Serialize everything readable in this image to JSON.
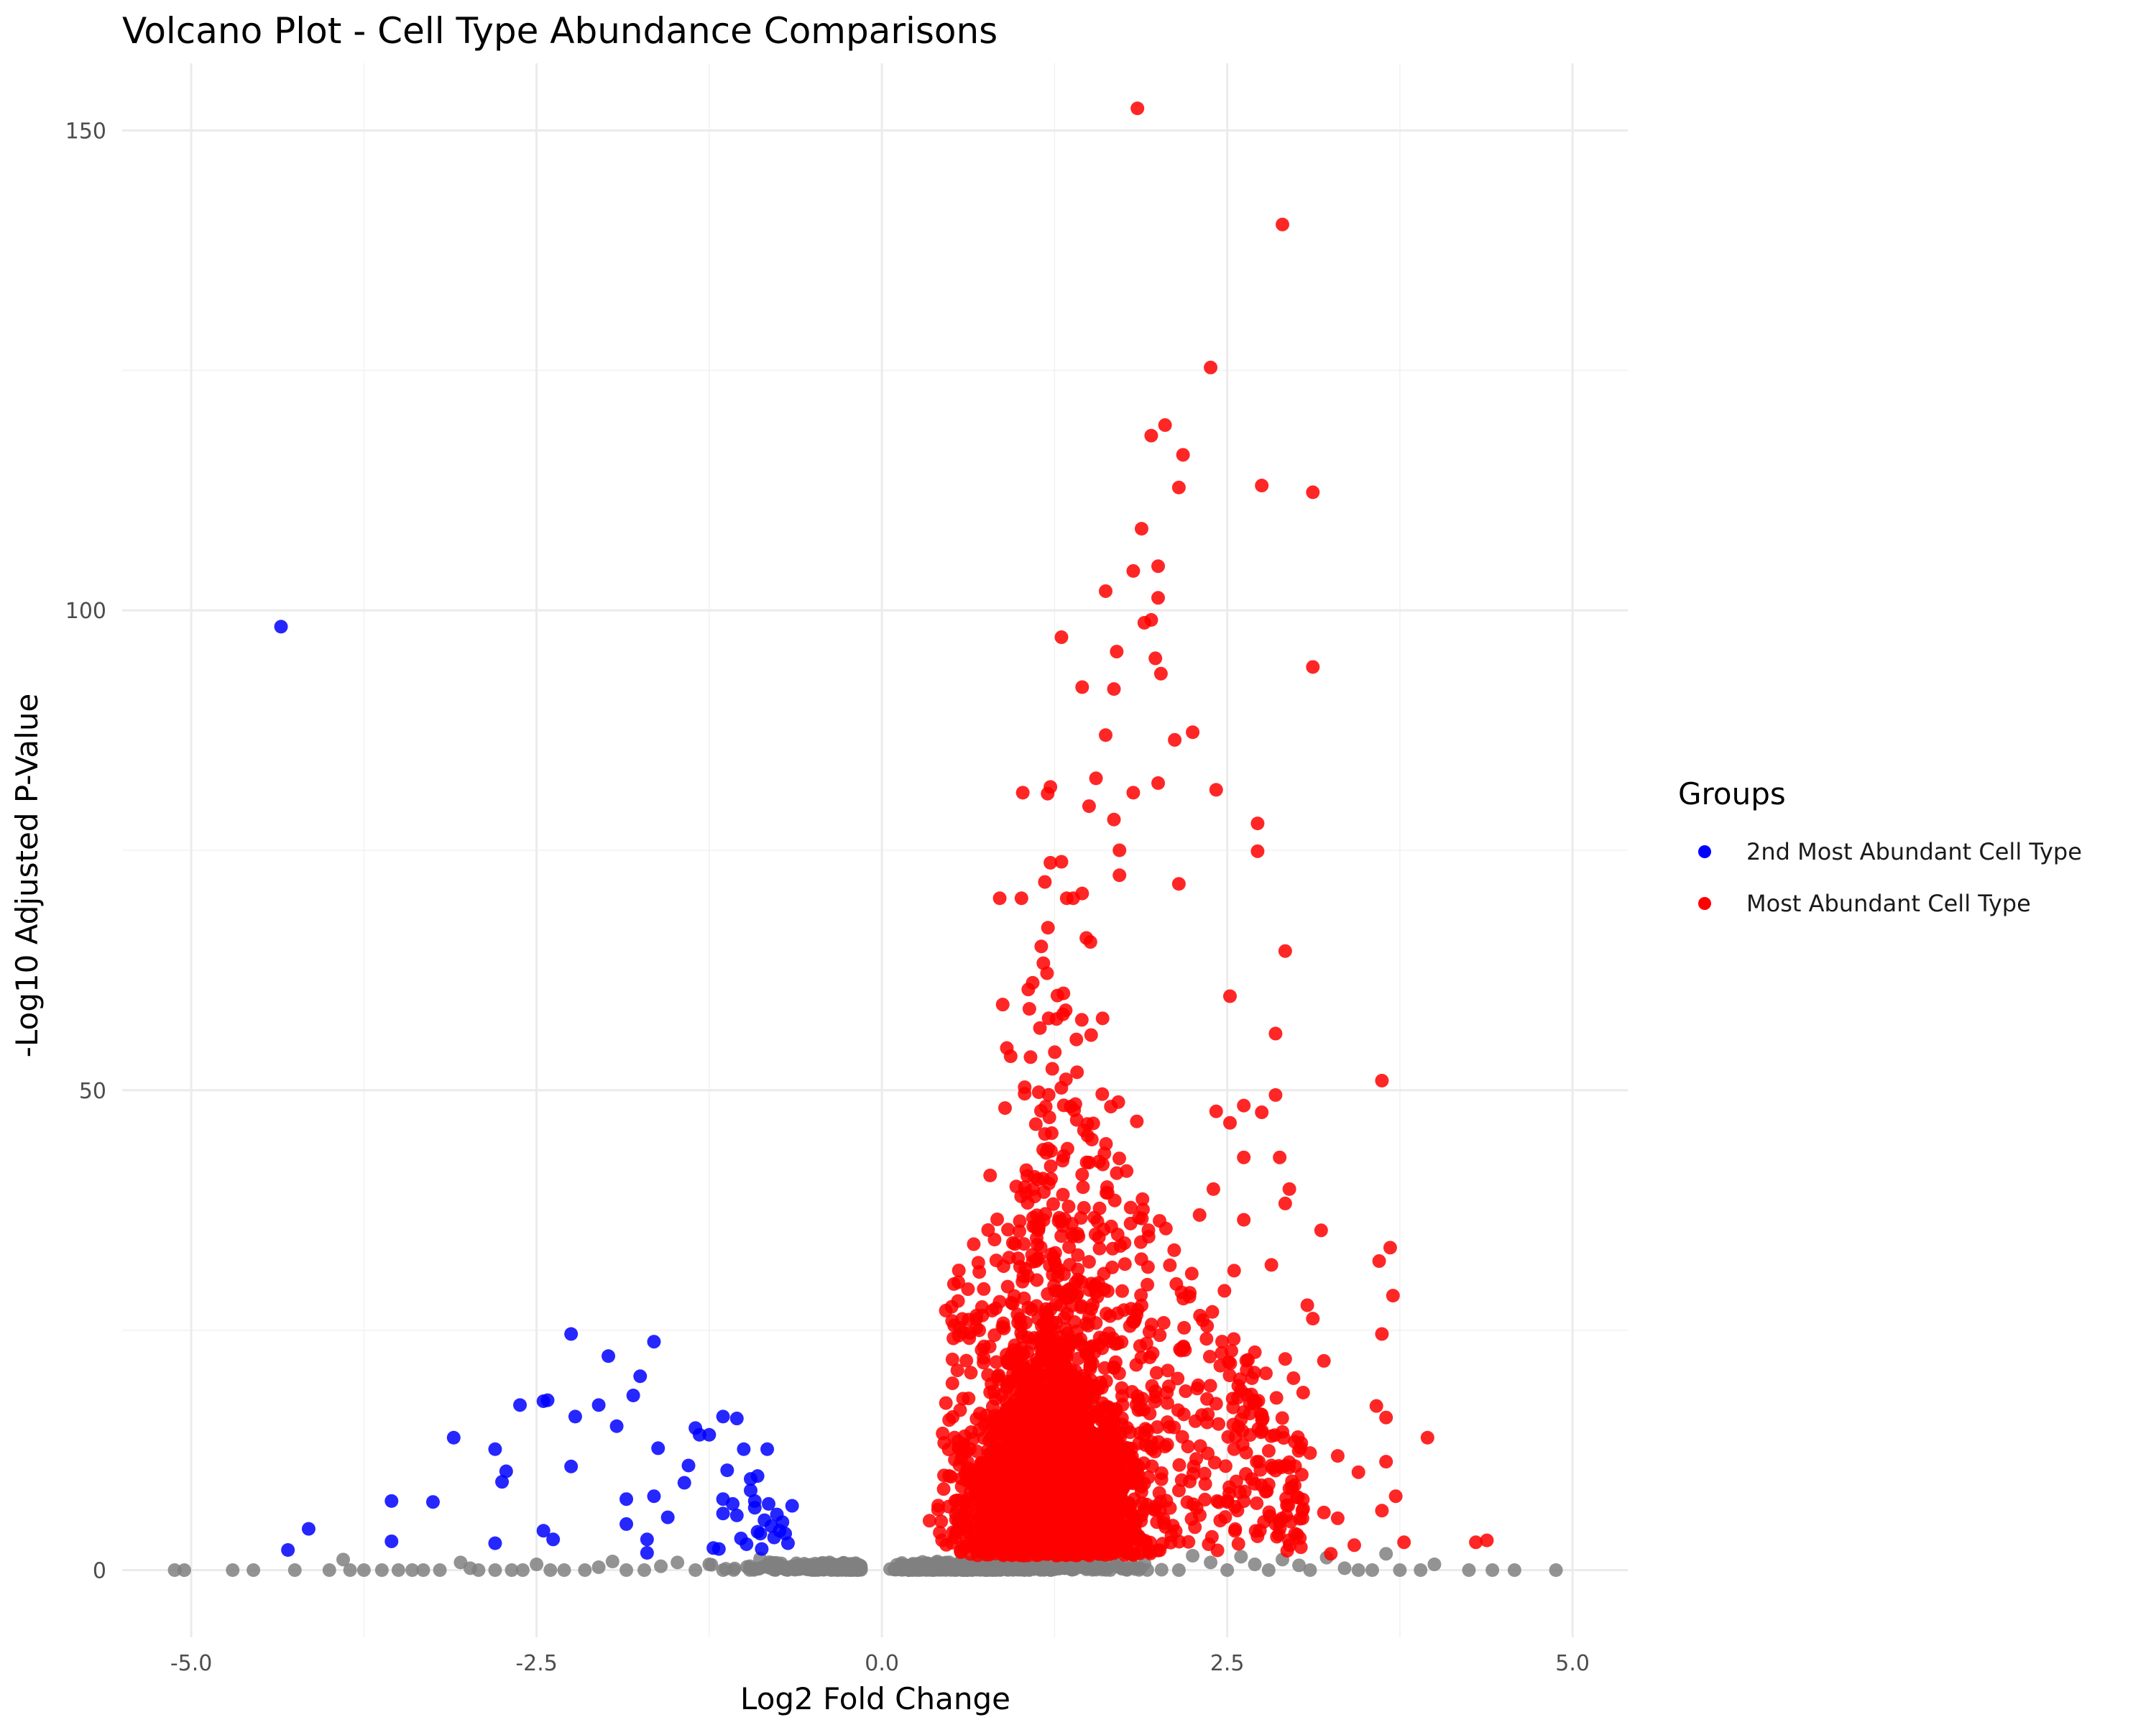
{
  "chart_data": {
    "type": "scatter",
    "title": "Volcano Plot - Cell Type Abundance Comparisons",
    "xlabel": "Log2 Fold Change",
    "ylabel": "-Log10 Adjusted P-Value",
    "xlim": [
      -5.5,
      5.4
    ],
    "ylim": [
      -7,
      157
    ],
    "xticks": [
      -5.0,
      -2.5,
      0.0,
      2.5,
      5.0
    ],
    "xtick_labels": [
      "-5.0",
      "-2.5",
      "0.0",
      "2.5",
      "5.0"
    ],
    "yticks": [
      0,
      50,
      100,
      150
    ],
    "ytick_labels": [
      "0",
      "50",
      "100",
      "150"
    ],
    "grid": true,
    "legend": {
      "title": "Groups",
      "position": "right",
      "entries": [
        {
          "label": "2nd Most Abundant Cell Type",
          "color": "#0000ff"
        },
        {
          "label": "Most Abundant Cell Type",
          "color": "#ff0000"
        }
      ]
    },
    "series": [
      {
        "name": "2nd Most Abundant Cell Type",
        "color": "#0000ff",
        "points": [
          [
            -4.35,
            98.3
          ],
          [
            -4.3,
            2.1
          ],
          [
            -4.15,
            4.3
          ],
          [
            -3.55,
            7.2
          ],
          [
            -3.55,
            3.0
          ],
          [
            -3.25,
            7.1
          ],
          [
            -3.1,
            13.8
          ],
          [
            -2.8,
            12.6
          ],
          [
            -2.75,
            9.2
          ],
          [
            -2.8,
            2.8
          ],
          [
            -2.72,
            10.3
          ],
          [
            -2.62,
            17.2
          ],
          [
            -2.45,
            17.6
          ],
          [
            -2.42,
            17.7
          ],
          [
            -2.45,
            4.1
          ],
          [
            -2.38,
            3.2
          ],
          [
            -2.25,
            24.6
          ],
          [
            -2.22,
            16.0
          ],
          [
            -2.25,
            10.8
          ],
          [
            -2.05,
            17.2
          ],
          [
            -1.98,
            22.3
          ],
          [
            -1.92,
            15.0
          ],
          [
            -1.85,
            7.4
          ],
          [
            -1.85,
            4.8
          ],
          [
            -1.8,
            18.2
          ],
          [
            -1.75,
            20.2
          ],
          [
            -1.7,
            3.2
          ],
          [
            -1.7,
            1.8
          ],
          [
            -1.65,
            23.8
          ],
          [
            -1.65,
            7.7
          ],
          [
            -1.62,
            12.7
          ],
          [
            -1.55,
            5.5
          ],
          [
            -1.43,
            9.1
          ],
          [
            -1.4,
            10.9
          ],
          [
            -1.35,
            14.8
          ],
          [
            -1.32,
            14.1
          ],
          [
            -1.25,
            14.1
          ],
          [
            -1.22,
            2.3
          ],
          [
            -1.18,
            2.2
          ],
          [
            -1.15,
            16.0
          ],
          [
            -1.15,
            7.4
          ],
          [
            -1.15,
            5.9
          ],
          [
            -1.12,
            10.4
          ],
          [
            -1.08,
            6.9
          ],
          [
            -1.05,
            15.8
          ],
          [
            -1.05,
            5.7
          ],
          [
            -1.02,
            3.3
          ],
          [
            -1.0,
            12.6
          ],
          [
            -0.98,
            2.7
          ],
          [
            -0.95,
            9.5
          ],
          [
            -0.95,
            8.3
          ],
          [
            -0.92,
            7.2
          ],
          [
            -0.92,
            6.5
          ],
          [
            -0.9,
            9.8
          ],
          [
            -0.88,
            3.8
          ],
          [
            -0.87,
            2.2
          ],
          [
            -0.85,
            5.2
          ],
          [
            -0.83,
            12.6
          ],
          [
            -0.82,
            6.9
          ],
          [
            -0.8,
            4.6
          ],
          [
            -0.78,
            3.4
          ],
          [
            -0.76,
            5.8
          ],
          [
            -0.74,
            4.1
          ],
          [
            -0.72,
            5.0
          ],
          [
            -0.7,
            3.8
          ],
          [
            -0.68,
            2.8
          ],
          [
            -0.65,
            6.7
          ],
          [
            -0.9,
            4.0
          ]
        ]
      },
      {
        "name": "Most Abundant Cell Type",
        "color": "#ff0000",
        "points": [
          [
            1.85,
            152.3
          ],
          [
            2.9,
            140.2
          ],
          [
            2.38,
            125.3
          ],
          [
            2.05,
            119.3
          ],
          [
            1.95,
            118.2
          ],
          [
            2.18,
            116.2
          ],
          [
            2.75,
            113.0
          ],
          [
            3.12,
            112.3
          ],
          [
            2.15,
            112.8
          ],
          [
            1.88,
            108.5
          ],
          [
            2.0,
            104.6
          ],
          [
            1.82,
            104.1
          ],
          [
            1.62,
            102.0
          ],
          [
            2.0,
            101.3
          ],
          [
            1.95,
            99.0
          ],
          [
            1.9,
            98.7
          ],
          [
            1.3,
            97.2
          ],
          [
            1.7,
            95.7
          ],
          [
            1.98,
            95.0
          ],
          [
            3.12,
            94.1
          ],
          [
            2.02,
            93.4
          ],
          [
            1.45,
            92.0
          ],
          [
            1.68,
            91.8
          ],
          [
            2.25,
            87.3
          ],
          [
            1.62,
            87.0
          ],
          [
            2.12,
            86.5
          ],
          [
            1.55,
            82.5
          ],
          [
            1.22,
            81.6
          ],
          [
            1.2,
            80.9
          ],
          [
            2.0,
            82.0
          ],
          [
            1.82,
            81.0
          ],
          [
            1.02,
            81.0
          ],
          [
            2.42,
            81.3
          ],
          [
            1.5,
            79.6
          ],
          [
            1.68,
            78.2
          ],
          [
            2.72,
            77.8
          ],
          [
            2.72,
            74.9
          ],
          [
            1.72,
            75.0
          ],
          [
            1.22,
            73.7
          ],
          [
            1.3,
            73.8
          ],
          [
            1.72,
            72.4
          ],
          [
            1.18,
            71.7
          ],
          [
            2.15,
            71.5
          ],
          [
            1.45,
            70.5
          ],
          [
            2.92,
            64.5
          ],
          [
            2.52,
            59.8
          ],
          [
            2.85,
            55.9
          ],
          [
            3.62,
            51.0
          ],
          [
            2.85,
            49.5
          ],
          [
            2.62,
            48.4
          ],
          [
            2.42,
            47.8
          ],
          [
            2.75,
            47.7
          ],
          [
            2.52,
            46.6
          ],
          [
            2.62,
            43.0
          ],
          [
            2.88,
            43.0
          ],
          [
            2.95,
            39.7
          ],
          [
            3.18,
            35.4
          ],
          [
            3.68,
            33.6
          ],
          [
            3.6,
            32.2
          ],
          [
            3.7,
            28.6
          ],
          [
            3.08,
            27.6
          ],
          [
            3.12,
            26.2
          ],
          [
            3.62,
            24.6
          ],
          [
            3.95,
            13.8
          ],
          [
            3.58,
            17.1
          ],
          [
            3.65,
            15.9
          ],
          [
            3.65,
            11.3
          ],
          [
            3.72,
            7.7
          ],
          [
            3.62,
            6.2
          ],
          [
            3.78,
            2.9
          ],
          [
            4.3,
            2.9
          ],
          [
            4.38,
            3.1
          ],
          [
            3.45,
            10.2
          ],
          [
            3.3,
            11.9
          ],
          [
            3.2,
            6.0
          ],
          [
            3.3,
            5.4
          ],
          [
            3.42,
            2.6
          ],
          [
            3.25,
            1.7
          ],
          [
            2.92,
            38.2
          ],
          [
            2.62,
            36.5
          ],
          [
            2.4,
            39.7
          ],
          [
            2.3,
            37.0
          ],
          [
            2.55,
            31.2
          ],
          [
            2.82,
            31.8
          ],
          [
            2.48,
            29.1
          ],
          [
            2.7,
            22.7
          ],
          [
            2.92,
            22.0
          ],
          [
            2.78,
            20.5
          ],
          [
            2.58,
            19.2
          ],
          [
            2.45,
            21.3
          ],
          [
            2.35,
            24.1
          ],
          [
            3.05,
            18.5
          ],
          [
            3.2,
            21.8
          ],
          [
            2.98,
            20.0
          ],
          [
            2.75,
            16.2
          ],
          [
            2.6,
            15.7
          ],
          [
            2.9,
            14.4
          ],
          [
            2.55,
            12.6
          ],
          [
            3.1,
            12.2
          ],
          [
            2.82,
            10.9
          ],
          [
            2.7,
            9.0
          ],
          [
            2.95,
            8.5
          ],
          [
            2.5,
            7.1
          ],
          [
            3.05,
            6.4
          ],
          [
            2.85,
            4.8
          ]
        ]
      },
      {
        "name": "",
        "color": "#808080",
        "points": [
          [
            -5.12,
            0.0
          ],
          [
            -5.05,
            0.0
          ],
          [
            -4.7,
            0.0
          ],
          [
            -4.55,
            0.0
          ],
          [
            -4.25,
            0.0
          ],
          [
            -4.0,
            0.0
          ],
          [
            -3.9,
            1.1
          ],
          [
            -3.85,
            0.0
          ],
          [
            -3.75,
            0.0
          ],
          [
            -3.62,
            0.0
          ],
          [
            -3.5,
            0.0
          ],
          [
            -3.4,
            0.0
          ],
          [
            -3.32,
            0.0
          ],
          [
            -3.2,
            0.0
          ],
          [
            -3.05,
            0.8
          ],
          [
            -2.98,
            0.2
          ],
          [
            -2.92,
            0.0
          ],
          [
            -2.8,
            0.0
          ],
          [
            -2.68,
            0.0
          ],
          [
            -2.6,
            0.0
          ],
          [
            -2.5,
            0.6
          ],
          [
            -2.4,
            0.0
          ],
          [
            -2.3,
            0.0
          ],
          [
            -2.15,
            0.0
          ],
          [
            -2.05,
            0.3
          ],
          [
            -1.95,
            0.9
          ],
          [
            -1.85,
            0.0
          ],
          [
            -1.72,
            0.0
          ],
          [
            -1.6,
            0.4
          ],
          [
            -1.48,
            0.8
          ],
          [
            -1.35,
            0.0
          ],
          [
            -1.25,
            0.6
          ],
          [
            -1.15,
            0.0
          ],
          [
            4.88,
            0.0
          ],
          [
            4.58,
            0.0
          ],
          [
            4.42,
            0.0
          ],
          [
            4.25,
            0.0
          ],
          [
            4.0,
            0.6
          ],
          [
            3.9,
            0.0
          ],
          [
            3.75,
            0.0
          ],
          [
            3.65,
            1.7
          ],
          [
            3.55,
            0.0
          ],
          [
            3.45,
            0.0
          ],
          [
            3.35,
            0.2
          ],
          [
            3.22,
            1.3
          ],
          [
            3.1,
            0.0
          ],
          [
            3.02,
            0.5
          ],
          [
            2.9,
            1.1
          ],
          [
            2.8,
            0.0
          ],
          [
            2.7,
            0.6
          ],
          [
            2.6,
            1.4
          ],
          [
            2.5,
            0.0
          ],
          [
            2.38,
            0.8
          ],
          [
            2.25,
            1.5
          ],
          [
            2.15,
            0.0
          ]
        ]
      }
    ]
  }
}
